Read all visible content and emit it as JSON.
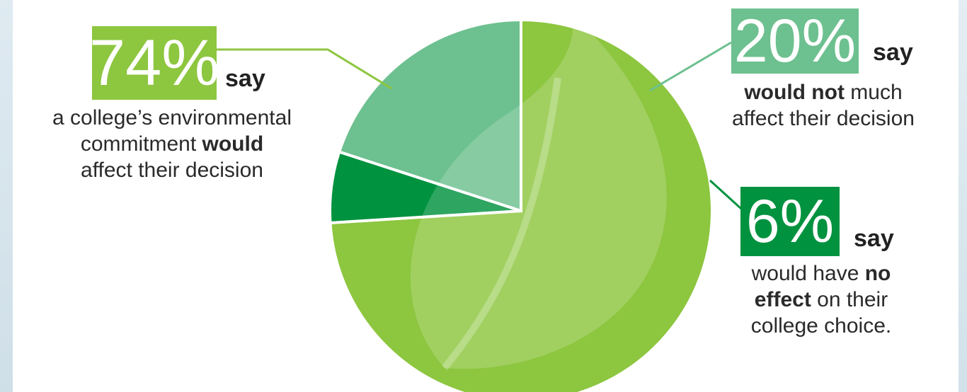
{
  "chart_data": {
    "type": "pie",
    "start_angle_deg": 0,
    "slices": [
      {
        "label": "74%",
        "value": 74,
        "color": "#8dc63f"
      },
      {
        "label": "6%",
        "value": 6,
        "color": "#00923f"
      },
      {
        "label": "20%",
        "value": 20,
        "color": "#6dc08f"
      }
    ]
  },
  "callouts": {
    "left": {
      "pct": "74%",
      "say": "say",
      "line1": "a college’s environmental",
      "line2_pre": "commitment ",
      "line2_bold": "would",
      "line3": "affect their decision",
      "color": "#8dc63f"
    },
    "top_right": {
      "pct": "20%",
      "say": "say",
      "line1_bold": "would not",
      "line1_post": " much",
      "line2": "affect their decision",
      "color": "#6dc08f"
    },
    "bottom_right": {
      "pct": "6%",
      "say": "say",
      "line1_pre": "would have ",
      "line1_bold": "no",
      "line2_bold": "effect",
      "line2_post": " on their",
      "line3": "college choice.",
      "color": "#00923f"
    }
  }
}
